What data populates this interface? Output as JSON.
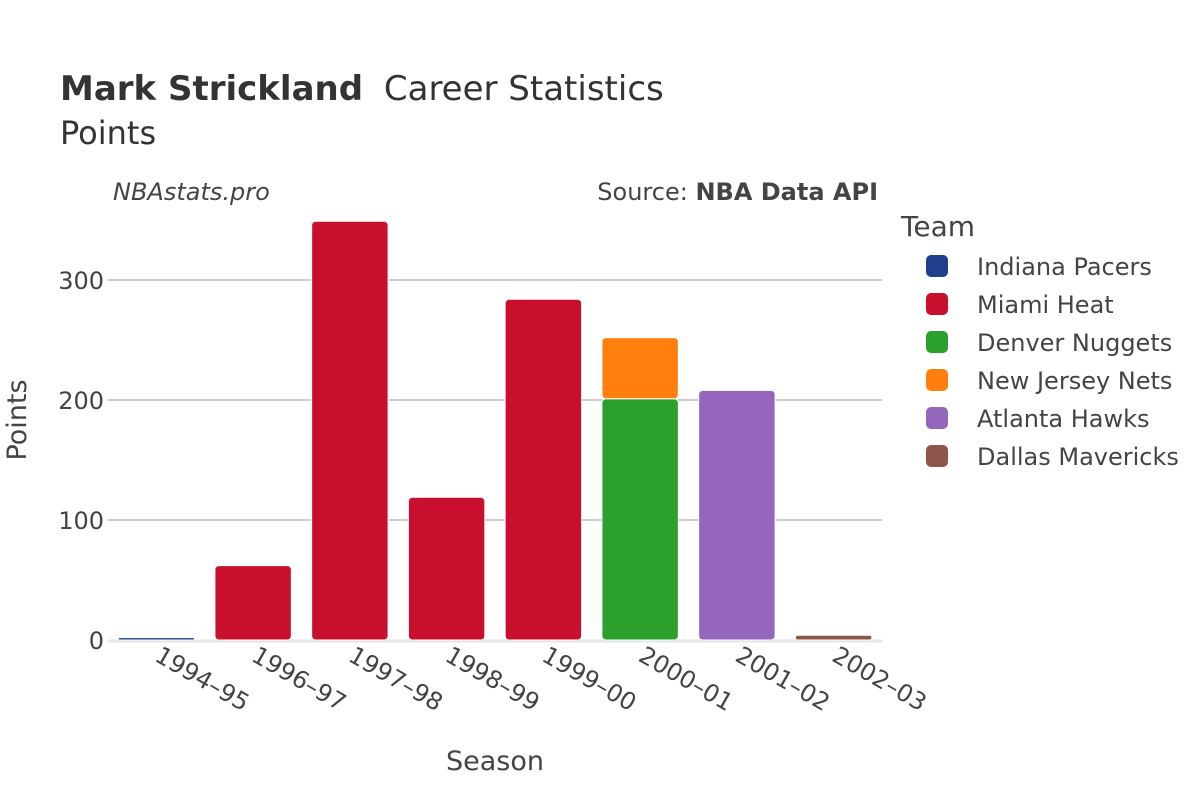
{
  "title": {
    "name": "Mark Strickland",
    "rest": "Career Statistics",
    "subtitle": "Points"
  },
  "watermark": "NBAstats.pro",
  "source": {
    "prefix": "Source: ",
    "name": "NBA Data API"
  },
  "legend": {
    "title": "Team",
    "items": [
      {
        "label": "Indiana Pacers",
        "color": "#1f3f8a"
      },
      {
        "label": "Miami Heat",
        "color": "#c8102e"
      },
      {
        "label": "Denver Nuggets",
        "color": "#2ca02c"
      },
      {
        "label": "New Jersey Nets",
        "color": "#ff7f0e"
      },
      {
        "label": "Atlanta Hawks",
        "color": "#9467bd"
      },
      {
        "label": "Dallas Mavericks",
        "color": "#8c564b"
      }
    ]
  },
  "chart_data": {
    "type": "bar",
    "stacked": true,
    "title": "Mark Strickland Career Statistics",
    "subtitle": "Points",
    "xlabel": "Season",
    "ylabel": "Points",
    "ylim": [
      0,
      360
    ],
    "yticks": [
      0,
      100,
      200,
      300
    ],
    "grid": true,
    "legend_position": "right",
    "categories": [
      "1994–95",
      "1996–97",
      "1997–98",
      "1998–99",
      "1999–00",
      "2000–01",
      "2001–02",
      "2002–03"
    ],
    "series": [
      {
        "name": "Indiana Pacers",
        "color": "#1f3f8a",
        "values": [
          2,
          0,
          0,
          0,
          0,
          0,
          0,
          0
        ]
      },
      {
        "name": "Miami Heat",
        "color": "#c8102e",
        "values": [
          0,
          62,
          349,
          119,
          284,
          0,
          0,
          0
        ]
      },
      {
        "name": "Denver Nuggets",
        "color": "#2ca02c",
        "values": [
          0,
          0,
          0,
          0,
          0,
          201,
          0,
          0
        ]
      },
      {
        "name": "New Jersey Nets",
        "color": "#ff7f0e",
        "values": [
          0,
          0,
          0,
          0,
          0,
          51,
          0,
          0
        ]
      },
      {
        "name": "Atlanta Hawks",
        "color": "#9467bd",
        "values": [
          0,
          0,
          0,
          0,
          0,
          0,
          208,
          0
        ]
      },
      {
        "name": "Dallas Mavericks",
        "color": "#8c564b",
        "values": [
          0,
          0,
          0,
          0,
          0,
          0,
          0,
          4
        ]
      }
    ]
  }
}
